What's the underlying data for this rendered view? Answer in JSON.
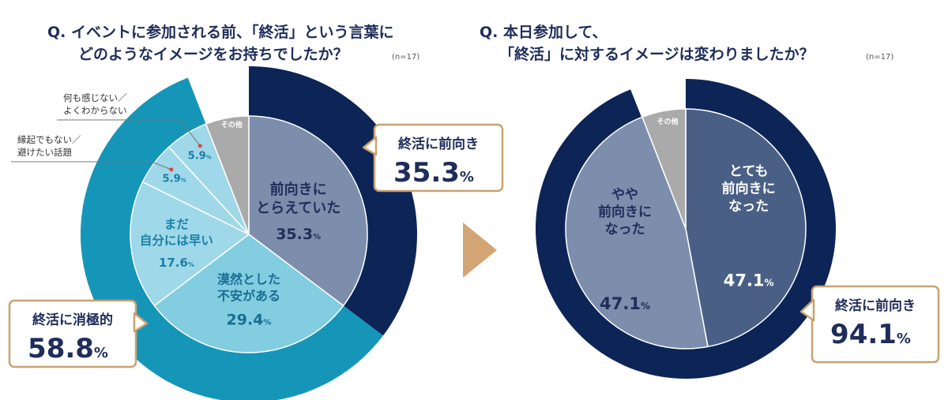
{
  "colors": {
    "navy": "#0d2457",
    "teal_ring": "#1596b8",
    "blue_gray": "#7c8eac",
    "slate": "#4a5f86",
    "light_teal": "#82cde0",
    "lighter_teal": "#9fd8e8",
    "gray": "#aaaaaa",
    "title_navy": "#1f2d5a",
    "callout_border": "#c8a271",
    "arrow": "#d4a574"
  },
  "chart_data": [
    {
      "type": "pie",
      "title_lines": [
        "Q. イベントに参加される前、「終活」という言葉に",
        "どのようなイメージをお持ちでしたか？"
      ],
      "n_label": "(n=17)",
      "slices": [
        {
          "label_lines": [
            "前向きに",
            "とらえていた"
          ],
          "value": 35.3,
          "value_text": "35.3"
        },
        {
          "label_lines": [
            "漠然とした",
            "不安がある"
          ],
          "value": 29.4,
          "value_text": "29.4"
        },
        {
          "label_lines": [
            "まだ",
            "自分には早い"
          ],
          "value": 17.6,
          "value_text": "17.6"
        },
        {
          "label_lines": [
            "縁起でもない／",
            "避けたい話題"
          ],
          "value": 5.9,
          "value_text": "5.9"
        },
        {
          "label_lines": [
            "何も感じない／",
            "よくわからない"
          ],
          "value": 5.9,
          "value_text": "5.9"
        },
        {
          "label_lines": [
            "その他"
          ],
          "value": 5.9,
          "value_text": ""
        }
      ],
      "outer_groups": [
        {
          "title": "終活に前向き",
          "value": 35.3,
          "value_text": "35.3"
        },
        {
          "title": "終活に消極的",
          "value": 58.8,
          "value_text": "58.8"
        }
      ],
      "pct_symbol": "%"
    },
    {
      "type": "pie",
      "title_lines": [
        "Q. 本日参加して、",
        "「終活」に対するイメージは変わりましたか？"
      ],
      "n_label": "(n=17)",
      "slices": [
        {
          "label_lines": [
            "とても",
            "前向きに",
            "なった"
          ],
          "value": 47.1,
          "value_text": "47.1"
        },
        {
          "label_lines": [
            "やや",
            "前向きに",
            "なった"
          ],
          "value": 47.1,
          "value_text": "47.1"
        },
        {
          "label_lines": [
            "その他"
          ],
          "value": 5.9,
          "value_text": ""
        }
      ],
      "outer_groups": [
        {
          "title": "終活に前向き",
          "value": 94.1,
          "value_text": "94.1"
        }
      ],
      "pct_symbol": "%"
    }
  ]
}
